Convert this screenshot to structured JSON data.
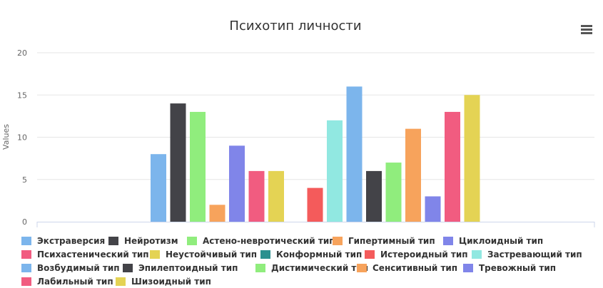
{
  "chart_data": {
    "type": "bar",
    "title": "Психотип личности",
    "ylabel": "Values",
    "ylim": [
      0,
      20
    ],
    "yticks": [
      0,
      5,
      10,
      15,
      20
    ],
    "grid": true,
    "legend_position": "bottom",
    "series": [
      {
        "name": "Экстраверсия",
        "value": 8,
        "color": "#7cb5ec"
      },
      {
        "name": "Нейротизм",
        "value": 14,
        "color": "#434348"
      },
      {
        "name": "Астено-невротический тип",
        "value": 13,
        "color": "#90ed7d"
      },
      {
        "name": "Гипертимный тип",
        "value": 2,
        "color": "#f7a35c"
      },
      {
        "name": "Циклоидный тип",
        "value": 9,
        "color": "#8085e9"
      },
      {
        "name": "Психастенический тип",
        "value": 6,
        "color": "#f15c80"
      },
      {
        "name": "Неустойчивый тип",
        "value": 6,
        "color": "#e4d354"
      },
      {
        "name": "Конформный тип",
        "value": 0,
        "color": "#2b908f"
      },
      {
        "name": "Истероидный тип",
        "value": 4,
        "color": "#f45b5b"
      },
      {
        "name": "Застревающий тип",
        "value": 12,
        "color": "#91e8e1"
      },
      {
        "name": "Возбудимый тип",
        "value": 16,
        "color": "#7cb5ec"
      },
      {
        "name": "Эпилептоидный тип",
        "value": 6,
        "color": "#434348"
      },
      {
        "name": "Дистимический тип",
        "value": 7,
        "color": "#90ed7d"
      },
      {
        "name": "Сенситивный тип",
        "value": 11,
        "color": "#f7a35c"
      },
      {
        "name": "Тревожный тип",
        "value": 3,
        "color": "#8085e9"
      },
      {
        "name": "Лабильный тип",
        "value": 13,
        "color": "#f15c80"
      },
      {
        "name": "Шизоидный тип",
        "value": 15,
        "color": "#e4d354"
      }
    ]
  },
  "menu_icon": "hamburger-menu-icon"
}
